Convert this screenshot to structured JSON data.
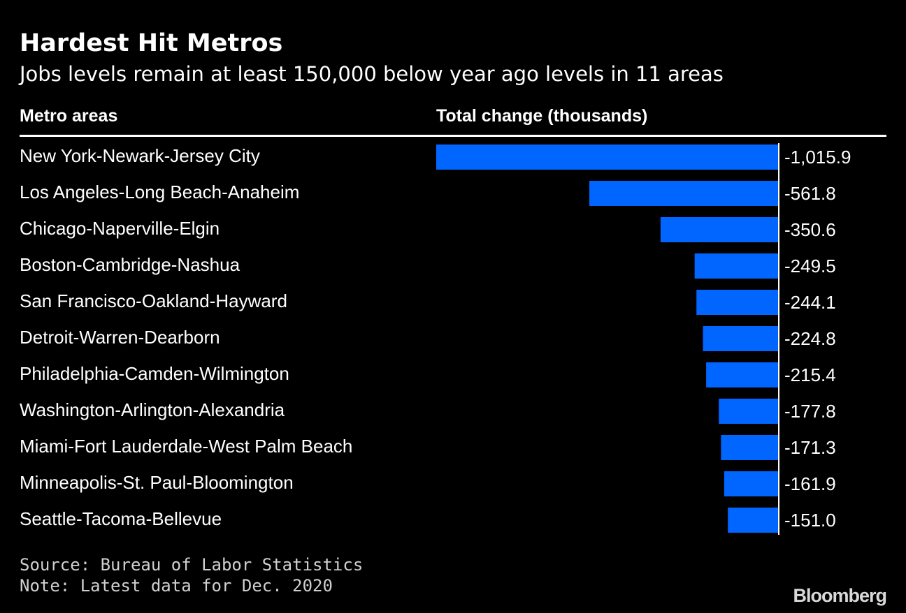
{
  "header": {
    "title": "Hardest Hit Metros",
    "subtitle": "Jobs levels remain at least 150,000 below year ago levels in 11 areas"
  },
  "columns": {
    "category_label": "Metro areas",
    "value_label": "Total change (thousands)"
  },
  "footer": {
    "source": "Source: Bureau of Labor Statistics",
    "note": "Note: Latest data for Dec. 2020",
    "brand": "Bloomberg"
  },
  "colors": {
    "bar": "#0066ff",
    "background": "#000000",
    "text": "#ffffff"
  },
  "chart_data": {
    "type": "bar",
    "orientation": "horizontal",
    "categories": [
      "New York-Newark-Jersey City",
      "Los Angeles-Long Beach-Anaheim",
      "Chicago-Naperville-Elgin",
      "Boston-Cambridge-Nashua",
      "San Francisco-Oakland-Hayward",
      "Detroit-Warren-Dearborn",
      "Philadelphia-Camden-Wilmington",
      "Washington-Arlington-Alexandria",
      "Miami-Fort Lauderdale-West Palm Beach",
      "Minneapolis-St. Paul-Bloomington",
      "Seattle-Tacoma-Bellevue"
    ],
    "values": [
      -1015.9,
      -561.8,
      -350.6,
      -249.5,
      -244.1,
      -224.8,
      -215.4,
      -177.8,
      -171.3,
      -161.9,
      -151.0
    ],
    "value_labels": [
      "-1,015.9",
      "-561.8",
      "-350.6",
      "-249.5",
      "-244.1",
      "-224.8",
      "-215.4",
      "-177.8",
      "-171.3",
      "-161.9",
      "-151.0"
    ],
    "xlim": [
      -1015.9,
      0
    ],
    "grid": false,
    "legend": "none"
  }
}
